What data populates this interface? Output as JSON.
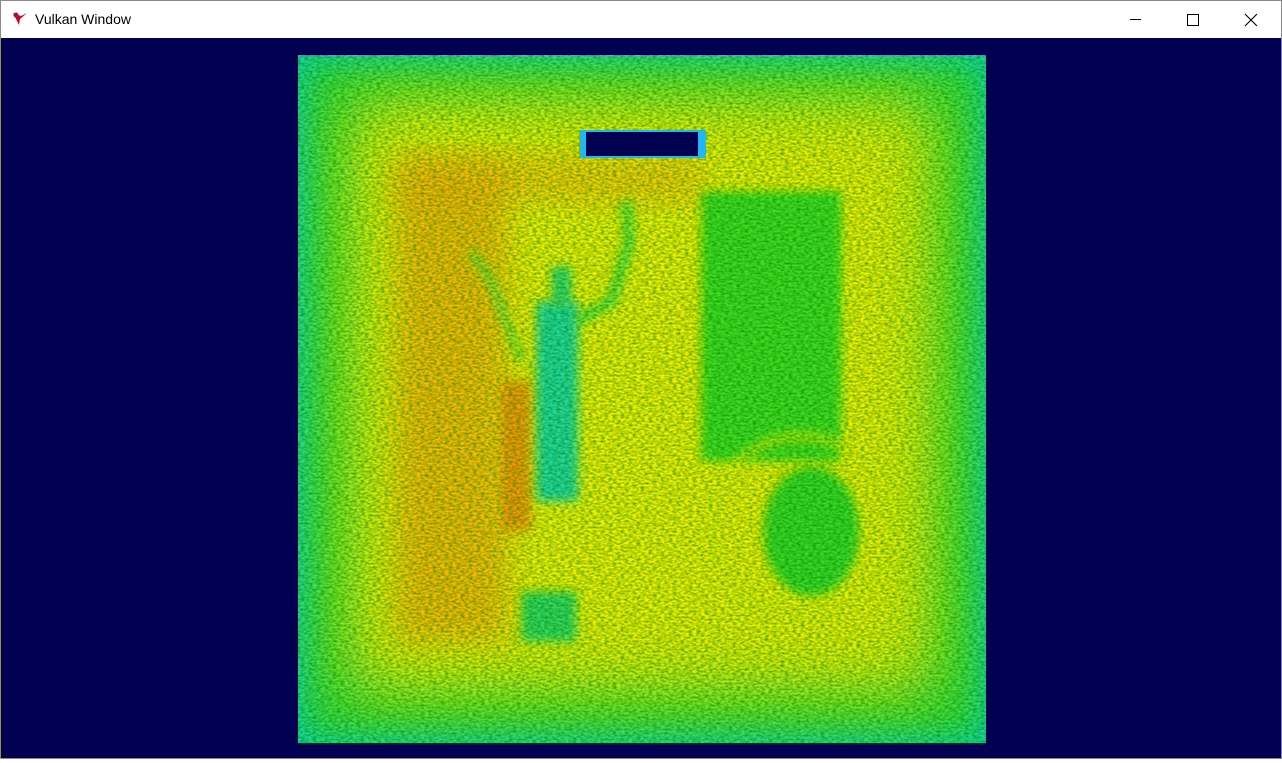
{
  "window": {
    "title": "Vulkan Window"
  }
}
